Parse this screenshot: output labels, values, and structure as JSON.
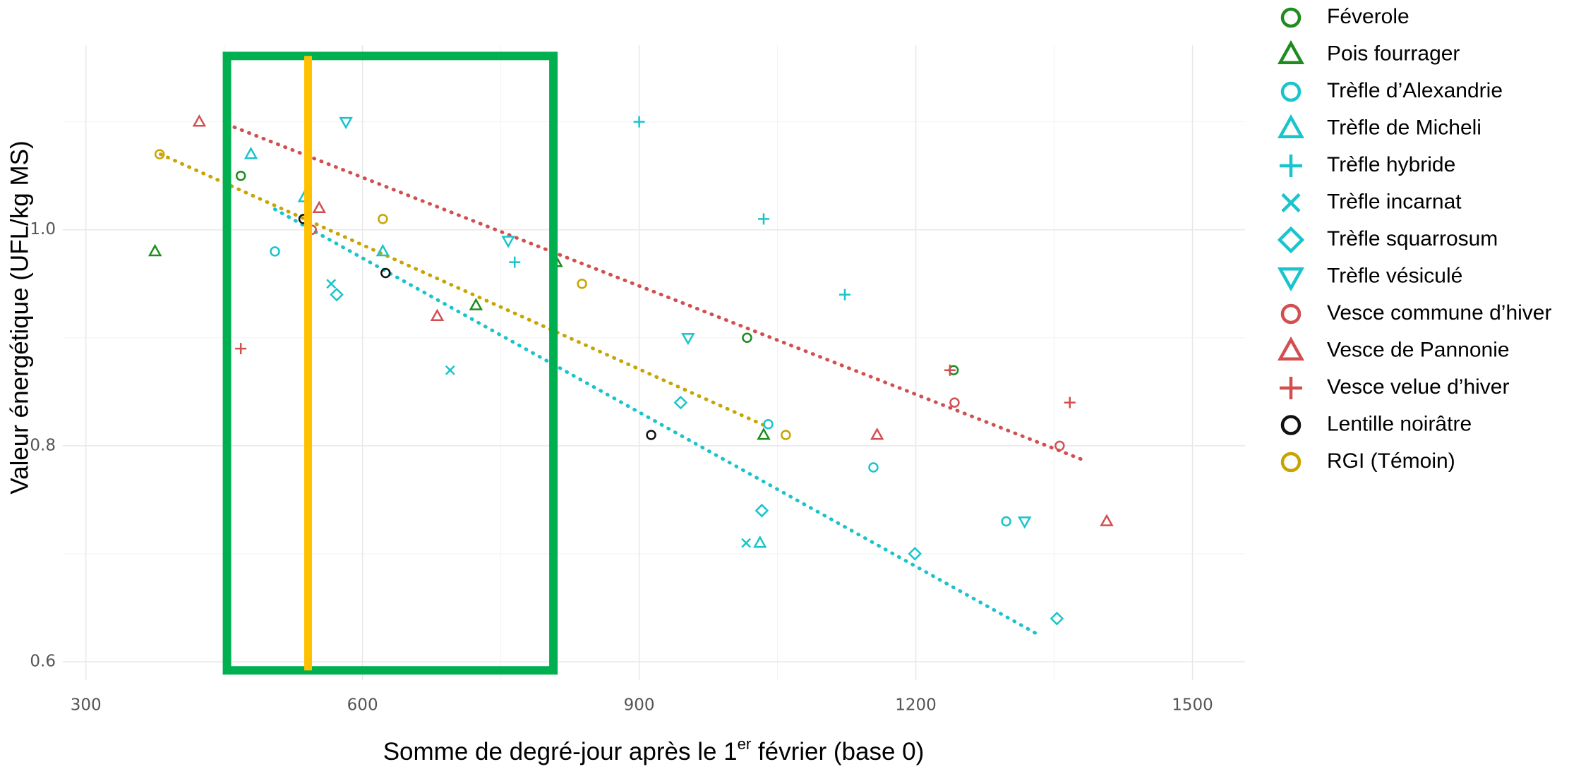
{
  "chart_data": {
    "type": "scatter",
    "xlabel": [
      "Somme de degré-jour après le 1",
      "er",
      " février (base 0)"
    ],
    "ylabel": "Valeur énergétique (UFL/kg MS)",
    "xlim": [
      275,
      1557
    ],
    "ylim": [
      0.583,
      1.171
    ],
    "xticks": [
      300,
      600,
      900,
      1200,
      1500
    ],
    "yticks": [
      0.6,
      0.8,
      {
        "value": 1,
        "label": "1.0"
      }
    ],
    "xminor": [
      450,
      750,
      1050,
      1350
    ],
    "yminor": [
      0.7,
      0.9,
      1.1
    ],
    "grid": true,
    "legend": "right",
    "series": [
      {
        "name": "Féverole",
        "color": "#1e8c1e",
        "marker": "circle",
        "x": [
          468,
          1017,
          1241
        ],
        "values": [
          1.05,
          0.9,
          0.87
        ]
      },
      {
        "name": "Pois fourrager",
        "color": "#1e8c1e",
        "marker": "triangle",
        "x": [
          375,
          723,
          810,
          1035
        ],
        "values": [
          0.98,
          0.93,
          0.97,
          0.81
        ]
      },
      {
        "name": "Trèfle d’Alexandrie",
        "color": "#19c4cc",
        "marker": "circle",
        "x": [
          505,
          1040,
          1154,
          1298
        ],
        "values": [
          0.98,
          0.82,
          0.78,
          0.73
        ]
      },
      {
        "name": "Trèfle de Micheli",
        "color": "#19c4cc",
        "marker": "triangle",
        "x": [
          479,
          537,
          622,
          1031
        ],
        "values": [
          1.07,
          1.03,
          0.98,
          0.71
        ]
      },
      {
        "name": "Trèfle hybride",
        "color": "#19c4cc",
        "marker": "plus",
        "x": [
          900,
          1035,
          765,
          1123
        ],
        "values": [
          1.1,
          1.01,
          0.97,
          0.94
        ]
      },
      {
        "name": "Trèfle incarnat",
        "color": "#19c4cc",
        "marker": "cross",
        "x": [
          566,
          695,
          1016
        ],
        "values": [
          0.95,
          0.87,
          0.71
        ]
      },
      {
        "name": "Trèfle squarrosum",
        "color": "#19c4cc",
        "marker": "diamond",
        "x": [
          572,
          945,
          1033,
          1199,
          1353
        ],
        "values": [
          0.94,
          0.84,
          0.74,
          0.7,
          0.64
        ]
      },
      {
        "name": "Trèfle vésiculé",
        "color": "#19c4cc",
        "marker": "down",
        "x": [
          582,
          758,
          953,
          1318
        ],
        "values": [
          1.1,
          0.99,
          0.9,
          0.73
        ]
      },
      {
        "name": "Vesce commune d’hiver",
        "color": "#d24f4f",
        "marker": "circle",
        "x": [
          545,
          1242,
          1356
        ],
        "values": [
          1.0,
          0.84,
          0.8
        ]
      },
      {
        "name": "Vesce de Pannonie",
        "color": "#d24f4f",
        "marker": "triangle",
        "x": [
          423,
          553,
          681,
          1158,
          1407
        ],
        "values": [
          1.1,
          1.02,
          0.92,
          0.81,
          0.73
        ]
      },
      {
        "name": "Vesce velue d’hiver",
        "color": "#d24f4f",
        "marker": "plus",
        "x": [
          468,
          1237,
          1367
        ],
        "values": [
          0.89,
          0.87,
          0.84
        ]
      },
      {
        "name": "Lentille noirâtre",
        "color": "#111111",
        "marker": "circle",
        "x": [
          536,
          625,
          913
        ],
        "values": [
          1.01,
          0.96,
          0.81
        ]
      },
      {
        "name": "RGI (Témoin)",
        "color": "#c9a400",
        "marker": "circle",
        "x": [
          380,
          622,
          838,
          1059
        ],
        "values": [
          1.07,
          1.01,
          0.95,
          0.81
        ]
      }
    ],
    "trend_lines": [
      {
        "color": "#d24f4f",
        "x": [
          461,
          1384
        ],
        "y": [
          1.095,
          0.786
        ]
      },
      {
        "color": "#c9a400",
        "x": [
          381,
          1038
        ],
        "y": [
          1.07,
          0.818
        ]
      },
      {
        "color": "#19c4cc",
        "x": [
          505,
          1333
        ],
        "y": [
          1.019,
          0.625
        ]
      }
    ],
    "highlight_box": {
      "color": "#00b050",
      "x": [
        453,
        807
      ],
      "y": [
        0.592,
        1.161
      ]
    },
    "vline": {
      "color": "#ffc000",
      "x": 541,
      "y": [
        0.592,
        1.161
      ]
    }
  }
}
